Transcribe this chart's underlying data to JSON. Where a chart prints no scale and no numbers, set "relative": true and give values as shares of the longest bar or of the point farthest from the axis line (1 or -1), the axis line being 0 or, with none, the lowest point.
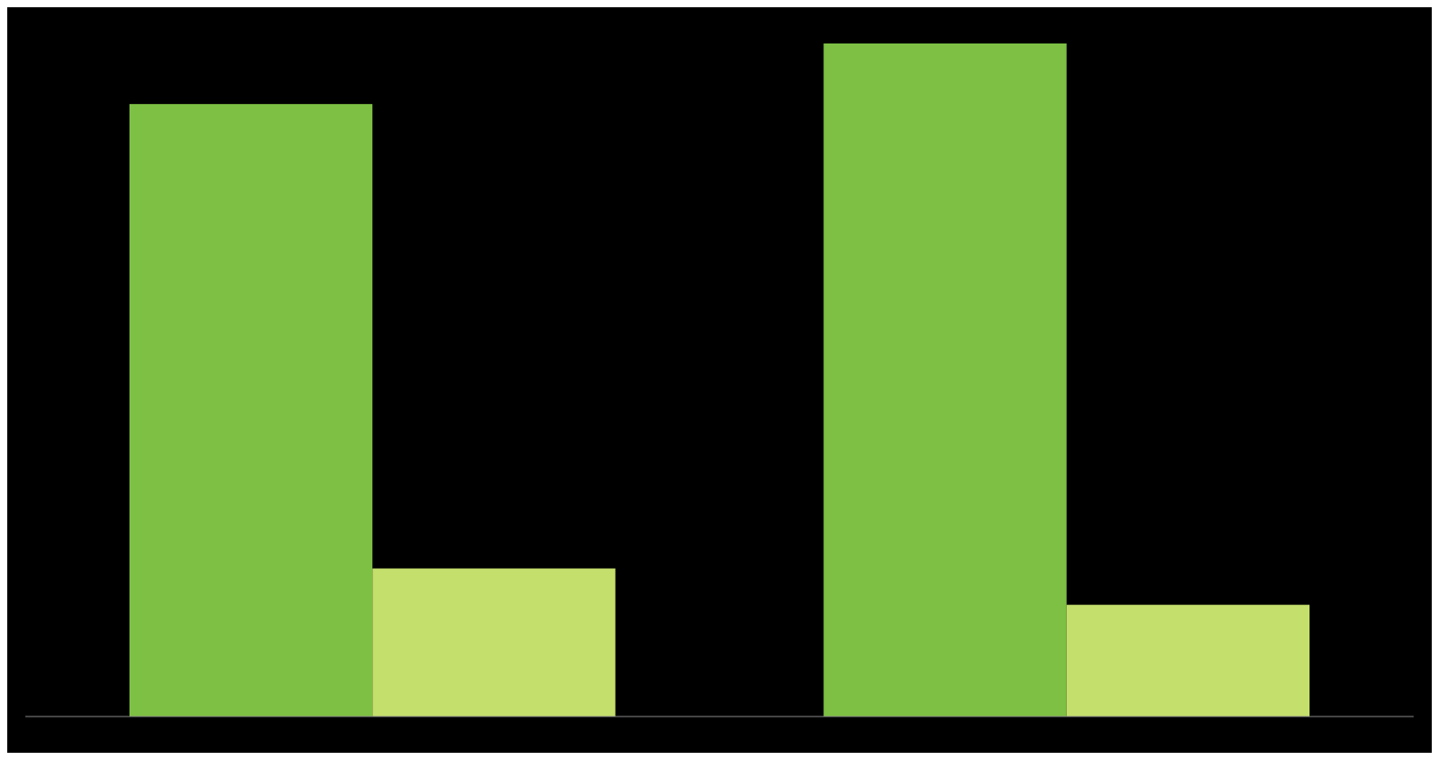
{
  "chart_data": {
    "type": "bar",
    "relative": true,
    "categories": [
      null,
      null
    ],
    "series": [
      {
        "color": "#7dc043",
        "values": [
          0.91,
          1
        ]
      },
      {
        "color": "#c4df6b",
        "values": [
          0.22,
          0.166
        ]
      }
    ]
  }
}
